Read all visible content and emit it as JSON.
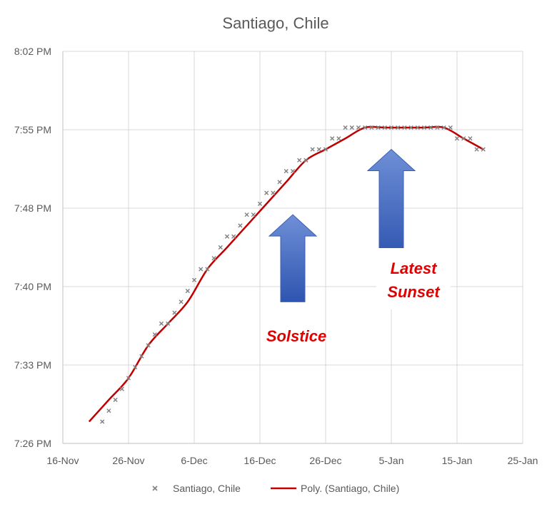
{
  "chart_data": {
    "type": "scatter",
    "title": "Santiago, Chile",
    "xlabel": "",
    "ylabel": "",
    "x_ticks": [
      "16-Nov",
      "26-Nov",
      "6-Dec",
      "16-Dec",
      "26-Dec",
      "5-Jan",
      "15-Jan",
      "25-Jan"
    ],
    "y_ticks": [
      "7:26 PM",
      "7:33 PM",
      "7:40 PM",
      "7:48 PM",
      "7:55 PM",
      "8:02 PM"
    ],
    "xlim": [
      "2021-11-16",
      "2022-01-25"
    ],
    "ylim": [
      "7:26 PM",
      "8:02 PM"
    ],
    "grid": true,
    "legend": "bottom",
    "series": [
      {
        "name": "Santiago, Chile",
        "marker": "x",
        "color": "#808080",
        "x": [
          "2021-11-22",
          "2021-11-23",
          "2021-11-24",
          "2021-11-25",
          "2021-11-26",
          "2021-11-27",
          "2021-11-28",
          "2021-11-29",
          "2021-11-30",
          "2021-12-01",
          "2021-12-02",
          "2021-12-03",
          "2021-12-04",
          "2021-12-05",
          "2021-12-06",
          "2021-12-07",
          "2021-12-08",
          "2021-12-09",
          "2021-12-10",
          "2021-12-11",
          "2021-12-12",
          "2021-12-13",
          "2021-12-14",
          "2021-12-15",
          "2021-12-16",
          "2021-12-17",
          "2021-12-18",
          "2021-12-19",
          "2021-12-20",
          "2021-12-21",
          "2021-12-22",
          "2021-12-23",
          "2021-12-24",
          "2021-12-25",
          "2021-12-26",
          "2021-12-27",
          "2021-12-28",
          "2021-12-29",
          "2021-12-30",
          "2021-12-31",
          "2022-01-01",
          "2022-01-02",
          "2022-01-03",
          "2022-01-04",
          "2022-01-05",
          "2022-01-06",
          "2022-01-07",
          "2022-01-08",
          "2022-01-09",
          "2022-01-10",
          "2022-01-11",
          "2022-01-12",
          "2022-01-13",
          "2022-01-14",
          "2022-01-15",
          "2022-01-16",
          "2022-01-17",
          "2022-01-18",
          "2022-01-19"
        ],
        "y": [
          "7:28 PM",
          "7:29 PM",
          "7:30 PM",
          "7:31 PM",
          "7:32 PM",
          "7:33 PM",
          "7:34 PM",
          "7:35 PM",
          "7:36 PM",
          "7:37 PM",
          "7:37 PM",
          "7:38 PM",
          "7:39 PM",
          "7:40 PM",
          "7:41 PM",
          "7:42 PM",
          "7:42 PM",
          "7:43 PM",
          "7:44 PM",
          "7:45 PM",
          "7:45 PM",
          "7:46 PM",
          "7:47 PM",
          "7:47 PM",
          "7:48 PM",
          "7:49 PM",
          "7:49 PM",
          "7:50 PM",
          "7:51 PM",
          "7:51 PM",
          "7:52 PM",
          "7:52 PM",
          "7:53 PM",
          "7:53 PM",
          "7:53 PM",
          "7:54 PM",
          "7:54 PM",
          "7:55 PM",
          "7:55 PM",
          "7:55 PM",
          "7:55 PM",
          "7:55 PM",
          "7:55 PM",
          "7:55 PM",
          "7:55 PM",
          "7:55 PM",
          "7:55 PM",
          "7:55 PM",
          "7:55 PM",
          "7:55 PM",
          "7:55 PM",
          "7:55 PM",
          "7:55 PM",
          "7:55 PM",
          "7:54 PM",
          "7:54 PM",
          "7:54 PM",
          "7:53 PM",
          "7:53 PM"
        ]
      },
      {
        "name": "Poly. (Santiago, Chile)",
        "type": "line",
        "color": "#c00000",
        "x": [
          "2021-11-20",
          "2021-11-23",
          "2021-11-26",
          "2021-11-29",
          "2021-12-02",
          "2021-12-05",
          "2021-12-08",
          "2021-12-11",
          "2021-12-14",
          "2021-12-17",
          "2021-12-20",
          "2021-12-23",
          "2021-12-26",
          "2021-12-29",
          "2022-01-01",
          "2022-01-04",
          "2022-01-07",
          "2022-01-10",
          "2022-01-13",
          "2022-01-16",
          "2022-01-19"
        ],
        "y": [
          "7:28 PM",
          "7:30 PM",
          "7:32 PM",
          "7:35 PM",
          "7:37 PM",
          "7:39 PM",
          "7:42 PM",
          "7:44 PM",
          "7:46 PM",
          "7:48 PM",
          "7:50 PM",
          "7:52 PM",
          "7:53 PM",
          "7:54 PM",
          "7:55 PM",
          "7:55 PM",
          "7:55 PM",
          "7:55 PM",
          "7:55 PM",
          "7:54 PM",
          "7:53 PM"
        ]
      }
    ],
    "annotations": [
      {
        "name": "solstice",
        "text": "Solstice",
        "x": "2021-12-21",
        "color": "#e00000"
      },
      {
        "name": "latest-sunset",
        "lines": [
          "Latest",
          "Sunset"
        ],
        "x": "2022-01-05",
        "color": "#e00000"
      }
    ],
    "arrows": [
      {
        "name": "solstice",
        "x": "2021-12-21",
        "y_from": "7:39 PM",
        "y_to": "7:47 PM",
        "color": "#4472c4"
      },
      {
        "name": "latest-sunset",
        "x": "2022-01-05",
        "y_from": "7:43 PM",
        "y_to": "7:53 PM",
        "color": "#4472c4"
      }
    ]
  }
}
